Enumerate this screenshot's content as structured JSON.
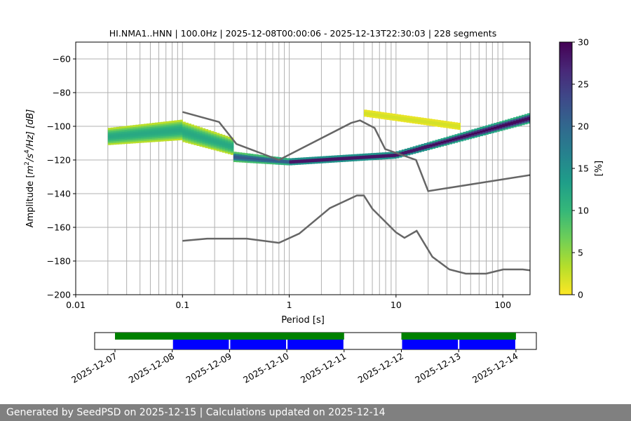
{
  "footer": {
    "text": "Generated by SeedPSD on 2025-12-15 | Calculations updated on 2025-12-14"
  },
  "colors": {
    "background": "#ffffff",
    "footer_bg": "#808080",
    "model_line": "#666666",
    "coverage_available": "#008000",
    "coverage_used": "#0000ff",
    "grid": "#b0b0b0",
    "colormap": [
      "#fde725",
      "#b5de2b",
      "#6ece58",
      "#35b779",
      "#1f9e89",
      "#26828e",
      "#31688e",
      "#3e4989",
      "#482878",
      "#440154"
    ]
  },
  "chart_data": [
    {
      "type": "heatmap",
      "title": "HI.NMA1..HNN | 100.0Hz | 2025-12-08T00:00:06 - 2025-12-13T22:30:03 | 228 segments",
      "xlabel": "Period [s]",
      "ylabel": "Amplitude [m²/s⁴/Hz] [dB]",
      "ylabel_parts": {
        "pre": "Amplitude [",
        "m": "m",
        "e1": "2",
        "mid": "/s",
        "e2": "4",
        "post": "/Hz] [dB]"
      },
      "x_scale": "log",
      "xlim": [
        0.01,
        180
      ],
      "ylim": [
        -200,
        -50
      ],
      "x_ticks": [
        0.01,
        0.1,
        1,
        10,
        100
      ],
      "x_tick_labels": [
        "0.01",
        "0.1",
        "1",
        "10",
        "100"
      ],
      "y_ticks": [
        -200,
        -180,
        -160,
        -140,
        -120,
        -100,
        -80,
        -60
      ],
      "y_tick_labels": [
        "−200",
        "−180",
        "−160",
        "−140",
        "−120",
        "−100",
        "−80",
        "−60"
      ],
      "grid": true,
      "vertical_grid_periods": [
        0.02,
        0.03,
        0.04,
        0.05,
        0.06,
        0.07,
        0.08,
        0.09,
        0.1,
        0.2,
        0.3,
        0.4,
        0.5,
        0.6,
        0.7,
        0.8,
        0.9,
        1,
        2,
        3,
        4,
        5,
        6,
        7,
        8,
        9,
        10,
        20,
        30,
        40,
        50,
        60,
        70,
        80,
        90,
        100
      ],
      "horizontal_grid_db": [
        -180,
        -160,
        -140,
        -120,
        -100,
        -80,
        -60
      ],
      "colorbar": {
        "label": "[%]",
        "min": 0,
        "max": 30,
        "ticks": [
          0,
          5,
          10,
          15,
          20,
          25,
          30
        ]
      },
      "density_bands": [
        {
          "period": [
            0.02,
            0.1
          ],
          "db_center": [
            -106,
            -102
          ],
          "db_width": [
            10,
            12
          ],
          "peak_percent": 12
        },
        {
          "period": [
            0.1,
            0.3
          ],
          "db_center": [
            -103,
            -112
          ],
          "db_width": [
            12,
            10
          ],
          "peak_percent": 12
        },
        {
          "period": [
            0.3,
            1.0
          ],
          "db_center": [
            -118,
            -121
          ],
          "db_width": [
            6,
            4
          ],
          "peak_percent": 22
        },
        {
          "period": [
            1.0,
            10
          ],
          "db_center": [
            -121,
            -117
          ],
          "db_width": [
            4,
            4
          ],
          "peak_percent": 30
        },
        {
          "period": [
            10,
            180
          ],
          "db_center": [
            -117,
            -95
          ],
          "db_width": [
            4,
            6
          ],
          "peak_percent": 30
        },
        {
          "period": [
            5,
            40
          ],
          "db_center": [
            -92,
            -100
          ],
          "db_width": [
            4,
            4
          ],
          "peak_percent": 2
        }
      ],
      "series": [
        {
          "period": [
            0.1,
            0.22,
            0.32,
            0.8,
            3.8,
            4.6,
            6.3,
            7.9,
            15.4,
            20,
            354.8
          ],
          "db": [
            -91.5,
            -97.4,
            -110.5,
            -120.0,
            -98.0,
            -96.5,
            -101.0,
            -113.5,
            -120.0,
            -138.5,
            -126.0
          ]
        },
        {
          "period": [
            0.1,
            0.17,
            0.4,
            0.8,
            1.24,
            2.4,
            4.3,
            5.0,
            6.0,
            10,
            12,
            15.6,
            21.9,
            31.6,
            45,
            70,
            101,
            154,
            328,
            600
          ],
          "db": [
            -168.0,
            -166.7,
            -166.7,
            -169.2,
            -163.7,
            -148.6,
            -141.1,
            -141.1,
            -149.0,
            -163.0,
            -166.2,
            -162.1,
            -177.5,
            -185.0,
            -187.5,
            -187.5,
            -185.0,
            -185.0,
            -187.5,
            -187.5
          ]
        }
      ]
    },
    {
      "type": "bar",
      "x_tick_labels": [
        "2025-12-07",
        "2025-12-08",
        "2025-12-09",
        "2025-12-10",
        "2025-12-11",
        "2025-12-12",
        "2025-12-13",
        "2025-12-14"
      ],
      "available_ranges": [
        [
          "2025-12-07",
          "2025-12-11"
        ],
        [
          "2025-12-12",
          "2025-12-14"
        ]
      ],
      "used_days": [
        "2025-12-08",
        "2025-12-09",
        "2025-12-10",
        "2025-12-12",
        "2025-12-13"
      ]
    }
  ]
}
